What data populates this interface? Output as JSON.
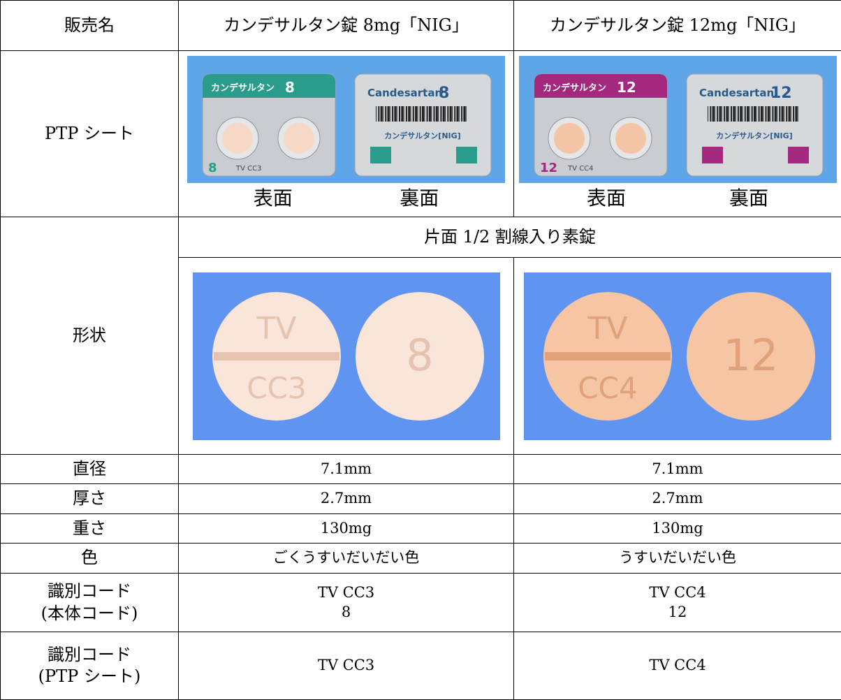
{
  "table": {
    "header": [
      "販売名",
      "カンデサルタン錠 8mg「NIG」",
      "カンデサルタン錠 12mg「NIG」"
    ],
    "ptp_sheet": {
      "label": "PTP シート",
      "products": [
        {
          "front": "表面",
          "back": "裏面",
          "front_image": {
            "name": "カンデサルタン",
            "strength": "8",
            "code": "TV CC3"
          },
          "back_image": {
            "brand": "Candesartan",
            "strength": "8",
            "product": "カンデサルタン[NIG]"
          }
        },
        {
          "front": "表面",
          "back": "裏面",
          "front_image": {
            "name": "カンデサルタン",
            "strength": "12",
            "code": "TV CC4"
          },
          "back_image": {
            "brand": "Candesartan",
            "strength": "12",
            "product": "カンデサルタン[NIG]"
          }
        }
      ]
    },
    "shape": {
      "label": "形状",
      "description": "片面 1/2 割線入り素錠",
      "images": [
        {
          "imprint_top": "TV",
          "imprint_bottom": "CC3",
          "mark": "8"
        },
        {
          "imprint_top": "TV",
          "imprint_bottom": "CC4",
          "mark": "12"
        }
      ]
    },
    "rows": [
      [
        "直径",
        "7.1mm",
        "7.1mm"
      ],
      [
        "厚さ",
        "2.7mm",
        "2.7mm"
      ],
      [
        "重さ",
        "130mg",
        "130mg"
      ],
      [
        "色",
        "ごくうすいだいだい色",
        "うすいだいだい色"
      ]
    ],
    "code_row": {
      "label": [
        "識別コード",
        "(本体コード)"
      ],
      "values": [
        [
          "TV CC3",
          "8"
        ],
        [
          "TV CC4",
          "12"
        ]
      ]
    },
    "ptp_code_row": {
      "label": [
        "識別コード",
        "(PTP シート)"
      ],
      "values": [
        "TV CC3",
        "TV CC4"
      ]
    }
  }
}
